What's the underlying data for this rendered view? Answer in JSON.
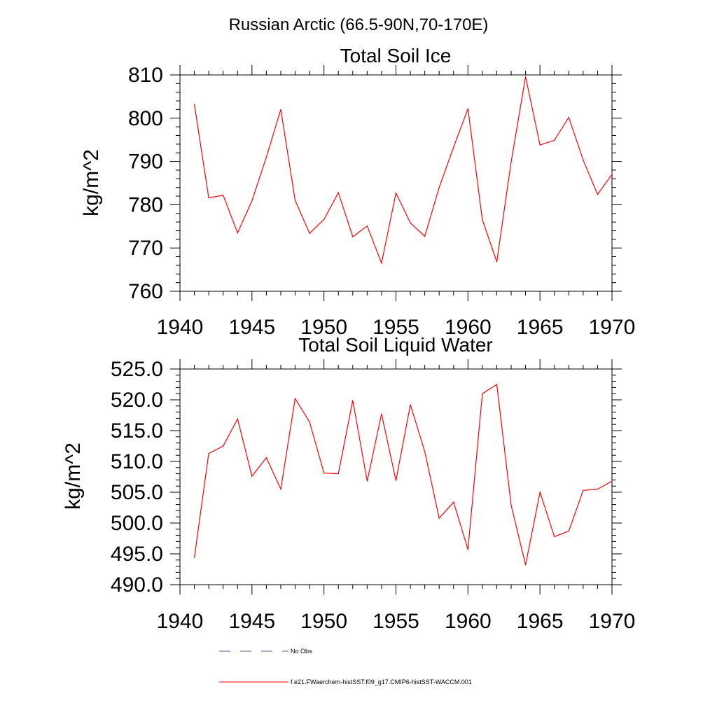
{
  "figure_title": "Russian Arctic (66.5-90N,70-170E)",
  "chart_data": [
    {
      "type": "line",
      "title": "Total Soil Ice",
      "ylabel": "kg/m^2",
      "xlabel": "",
      "xlim": [
        1940,
        1970
      ],
      "ylim": [
        760,
        810
      ],
      "x_ticks": [
        1940,
        1945,
        1950,
        1955,
        1960,
        1965,
        1970
      ],
      "x_tick_labels": [
        "1940",
        "1945",
        "1950",
        "1955",
        "1960",
        "1965",
        "1970"
      ],
      "y_ticks": [
        760,
        770,
        780,
        790,
        800,
        810
      ],
      "y_tick_labels": [
        "760",
        "770",
        "780",
        "790",
        "800",
        "810"
      ],
      "grid": false,
      "x": [
        1941,
        1942,
        1943,
        1944,
        1945,
        1946,
        1947,
        1948,
        1949,
        1950,
        1951,
        1952,
        1953,
        1954,
        1955,
        1956,
        1957,
        1958,
        1959,
        1960,
        1961,
        1962,
        1963,
        1964,
        1965,
        1966,
        1967,
        1968,
        1969,
        1970
      ],
      "series": [
        {
          "name": "f.e21.FWaerchem-histSST.f09_g17.CMIP6-histSST-WACCM.001",
          "color": "#ff0000",
          "values": [
            803.2,
            781.6,
            782.2,
            773.5,
            780.9,
            791.0,
            802.0,
            781.0,
            773.4,
            776.6,
            782.8,
            772.6,
            775.1,
            766.5,
            782.7,
            775.8,
            772.7,
            784.0,
            793.3,
            802.2,
            776.5,
            766.8,
            789.9,
            809.6,
            793.8,
            794.9,
            800.2,
            790.3,
            782.4,
            787.0
          ]
        }
      ]
    },
    {
      "type": "line",
      "title": "Total Soil Liquid Water",
      "ylabel": "kg/m^2",
      "xlabel": "",
      "xlim": [
        1940,
        1970
      ],
      "ylim": [
        490,
        525
      ],
      "x_ticks": [
        1940,
        1945,
        1950,
        1955,
        1960,
        1965,
        1970
      ],
      "x_tick_labels": [
        "1940",
        "1945",
        "1950",
        "1955",
        "1960",
        "1965",
        "1970"
      ],
      "y_ticks": [
        490,
        495,
        500,
        505,
        510,
        515,
        520,
        525
      ],
      "y_tick_labels": [
        "490.0",
        "495.0",
        "500.0",
        "505.0",
        "510.0",
        "515.0",
        "520.0",
        "525.0"
      ],
      "grid": false,
      "x": [
        1941,
        1942,
        1943,
        1944,
        1945,
        1946,
        1947,
        1948,
        1949,
        1950,
        1951,
        1952,
        1953,
        1954,
        1955,
        1956,
        1957,
        1958,
        1959,
        1960,
        1961,
        1962,
        1963,
        1964,
        1965,
        1966,
        1967,
        1968,
        1969,
        1970
      ],
      "series": [
        {
          "name": "f.e21.FWaerchem-histSST.f09_g17.CMIP6-histSST-WACCM.001",
          "color": "#ff0000",
          "values": [
            494.4,
            511.3,
            512.5,
            516.9,
            507.6,
            510.6,
            505.5,
            520.2,
            516.4,
            508.1,
            508.0,
            519.9,
            506.8,
            517.7,
            506.9,
            519.2,
            511.6,
            500.8,
            503.4,
            495.7,
            521.0,
            522.5,
            502.9,
            493.2,
            505.0,
            497.8,
            498.7,
            505.3,
            505.5,
            506.8
          ]
        }
      ]
    }
  ],
  "legend": {
    "placement": "bottom",
    "entries": [
      {
        "label": "No Obs",
        "color": "#5a5aa0",
        "style": "dashed"
      },
      {
        "label": "f.e21.FWaerchem-histSST.f09_g17.CMIP6-histSST-WACCM.001",
        "color": "#ff0000",
        "style": "solid"
      }
    ]
  }
}
